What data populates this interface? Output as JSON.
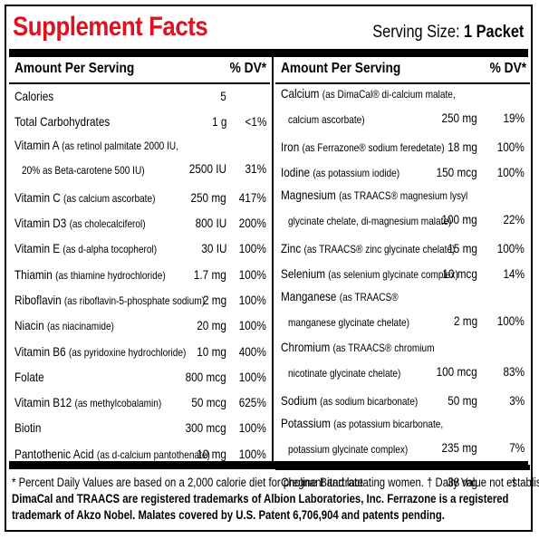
{
  "title": "Supplement Facts",
  "serving_label": "Serving Size:",
  "serving_value": "1 Packet",
  "headers": {
    "amount": "Amount Per Serving",
    "dv": "% DV*"
  },
  "left_rows": [
    {
      "name": "Calories",
      "detail": "",
      "detail2": "",
      "amount": "5",
      "dv": ""
    },
    {
      "name": "Total Carbohydrates",
      "detail": "",
      "detail2": "",
      "amount": "1 g",
      "dv": "<1%"
    },
    {
      "name": "Vitamin A",
      "detail": "(as retinol palmitate 2000 IU,",
      "detail2": "20% as Beta-carotene 500 IU)",
      "amount": "2500 IU",
      "dv": "31%"
    },
    {
      "name": "Vitamin C",
      "detail": "(as calcium ascorbate)",
      "detail2": "",
      "amount": "250 mg",
      "dv": "417%"
    },
    {
      "name": "Vitamin D3",
      "detail": "(as cholecalciferol)",
      "detail2": "",
      "amount": "800 IU",
      "dv": "200%"
    },
    {
      "name": "Vitamin E",
      "detail": "(as d-alpha tocopherol)",
      "detail2": "",
      "amount": "30 IU",
      "dv": "100%"
    },
    {
      "name": "Thiamin",
      "detail": "(as thiamine hydrochloride)",
      "detail2": "",
      "amount": "1.7 mg",
      "dv": "100%"
    },
    {
      "name": "Riboflavin",
      "detail": "(as riboflavin-5-phosphate sodium)",
      "detail2": "",
      "amount": "2 mg",
      "dv": "100%"
    },
    {
      "name": "Niacin",
      "detail": "(as niacinamide)",
      "detail2": "",
      "amount": "20 mg",
      "dv": "100%"
    },
    {
      "name": "Vitamin B6",
      "detail": "(as pyridoxine hydrochloride)",
      "detail2": "",
      "amount": "10 mg",
      "dv": "400%"
    },
    {
      "name": "Folate",
      "detail": "",
      "detail2": "",
      "amount": "800 mcg",
      "dv": "100%"
    },
    {
      "name": "Vitamin B12",
      "detail": "(as methylcobalamin)",
      "detail2": "",
      "amount": "50 mcg",
      "dv": "625%"
    },
    {
      "name": "Biotin",
      "detail": "",
      "detail2": "",
      "amount": "300 mcg",
      "dv": "100%"
    },
    {
      "name": "Pantothenic Acid",
      "detail": "(as d-calcium pantothenate)",
      "detail2": "",
      "amount": "10 mg",
      "dv": "100%"
    }
  ],
  "right_rows": [
    {
      "name": "Calcium",
      "detail": "(as DimaCal® di-calcium malate,",
      "detail2": "calcium ascorbate)",
      "amount": "250 mg",
      "dv": "19%"
    },
    {
      "name": "Iron",
      "detail": "(as Ferrazone® sodium feredetate)",
      "detail2": "",
      "amount": "18 mg",
      "dv": "100%"
    },
    {
      "name": "Iodine",
      "detail": "(as potassium iodide)",
      "detail2": "",
      "amount": "150 mcg",
      "dv": "100%"
    },
    {
      "name": "Magnesium",
      "detail": "(as TRAACS® magnesium lysyl",
      "detail2": "glycinate chelate, di-magnesium malate)",
      "amount": "100 mg",
      "dv": "22%"
    },
    {
      "name": "Zinc",
      "detail": "(as TRAACS® zinc glycinate chelate)",
      "detail2": "",
      "amount": "15 mg",
      "dv": "100%"
    },
    {
      "name": "Selenium",
      "detail": "(as selenium glycinate complex)",
      "detail2": "",
      "amount": "10 mcg",
      "dv": "14%"
    },
    {
      "name": "Manganese",
      "detail": "(as TRAACS®",
      "detail2": "manganese glycinate chelate)",
      "amount": "2 mg",
      "dv": "100%"
    },
    {
      "name": "Chromium",
      "detail": "(as TRAACS® chromium",
      "detail2": "nicotinate glycinate chelate)",
      "amount": "100 mcg",
      "dv": "83%"
    },
    {
      "name": "Sodium",
      "detail": "(as sodium bicarbonate)",
      "detail2": "",
      "amount": "50 mg",
      "dv": "3%"
    },
    {
      "name": "Potassium",
      "detail": "(as potassium bicarbonate,",
      "detail2": "potassium glycinate complex)",
      "amount": "235 mg",
      "dv": "7%"
    }
  ],
  "choline": {
    "name": "Choline Bitartrate",
    "amount": "38 mg",
    "dv": "†"
  },
  "footnotes": [
    "* Percent Daily Values are based on a 2,000 calorie diet for pregnant and lactating women.  † Daily Value not established.",
    "DimaCal and TRAACS are registered trademarks of Albion Laboratories, Inc. Ferrazone is a registered",
    "trademark of Akzo Nobel. Malates covered by U.S. Patent 6,706,904 and patents pending."
  ]
}
